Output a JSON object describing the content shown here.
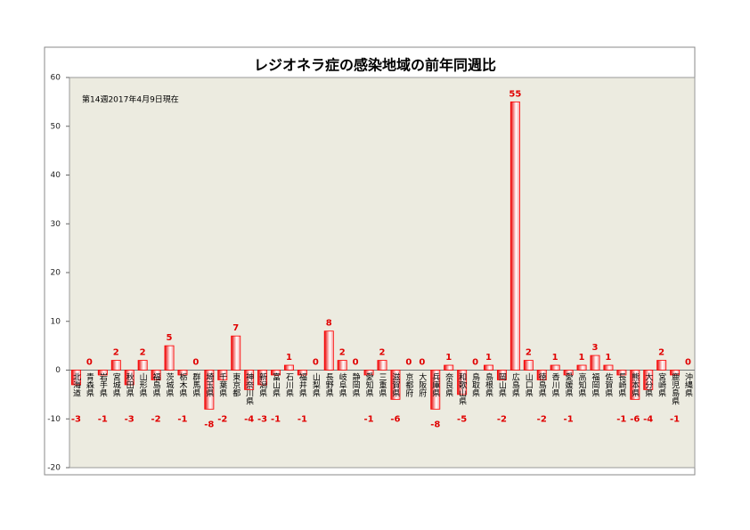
{
  "chart_data": {
    "type": "bar",
    "title": "レジオネラ症の感染地域の前年同週比",
    "subtitle": "第14週2017年4月9日現在",
    "categories": [
      "北海道",
      "青森県",
      "岩手県",
      "宮城県",
      "秋田県",
      "山形県",
      "福島県",
      "茨城県",
      "栃木県",
      "群馬県",
      "埼玉県",
      "千葉県",
      "東京都",
      "神奈川県",
      "新潟県",
      "富山県",
      "石川県",
      "福井県",
      "山梨県",
      "長野県",
      "岐阜県",
      "静岡県",
      "愛知県",
      "三重県",
      "滋賀県",
      "京都府",
      "大阪府",
      "兵庫県",
      "奈良県",
      "和歌山県",
      "鳥取県",
      "島根県",
      "岡山県",
      "広島県",
      "山口県",
      "徳島県",
      "香川県",
      "愛媛県",
      "高知県",
      "福岡県",
      "佐賀県",
      "長崎県",
      "熊本県",
      "大分県",
      "宮崎県",
      "鹿児島県",
      "沖縄県"
    ],
    "values": [
      -3,
      0,
      -1,
      2,
      -3,
      2,
      -2,
      5,
      -1,
      0,
      -8,
      -2,
      7,
      -4,
      -3,
      -1,
      1,
      -1,
      0,
      8,
      2,
      0,
      -1,
      2,
      -6,
      0,
      0,
      -8,
      1,
      -5,
      0,
      1,
      -2,
      55,
      2,
      -2,
      1,
      -1,
      1,
      3,
      1,
      -1,
      -6,
      -4,
      2,
      -1,
      0
    ],
    "color": "#ff0000",
    "ylim": [
      -20,
      60
    ],
    "yticks": [
      -20,
      -10,
      0,
      10,
      20,
      30,
      40,
      50,
      60
    ],
    "grid": false
  }
}
